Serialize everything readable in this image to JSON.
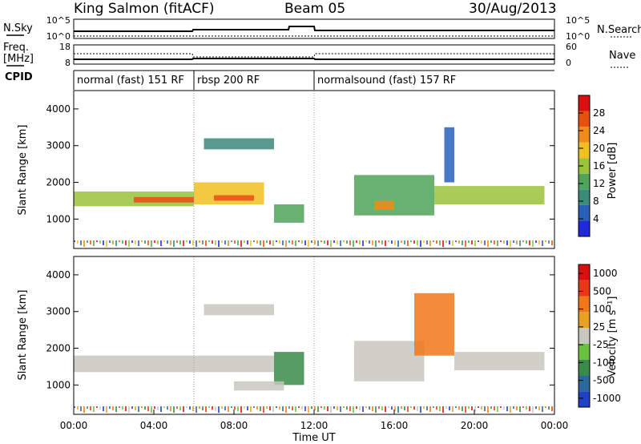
{
  "header": {
    "title": "King Salmon (fitACF)",
    "beam": "Beam 05",
    "date": "30/Aug/2013"
  },
  "summary_labels": {
    "nsky": "N.Sky",
    "nsky_ticks": [
      "10^5",
      "10^0"
    ],
    "nsearch": "N.Search",
    "nsearch_ticks": [
      "10^5",
      "10^0"
    ],
    "freq": "Freq.",
    "freq_unit": "[MHz]",
    "freq_ticks": [
      "18",
      "8"
    ],
    "nave": "Nave",
    "nave_ticks": [
      "60",
      "0"
    ],
    "cpid": "CPID"
  },
  "cpid_segments": [
    {
      "label": "normal (fast) 151 RF",
      "start": 0,
      "end": 6
    },
    {
      "label": "rbsp 200 RF",
      "start": 6,
      "end": 12
    },
    {
      "label": "normalsound (fast) 157 RF",
      "start": 12,
      "end": 24
    }
  ],
  "axes": {
    "ylabel": "Slant Range [km]",
    "xlabel": "Time UT",
    "yticks": [
      "1000",
      "2000",
      "3000",
      "4000"
    ],
    "xticks": [
      "00:00",
      "04:00",
      "08:00",
      "12:00",
      "16:00",
      "20:00",
      "00:00"
    ]
  },
  "colorbars": {
    "power": {
      "label": "Power [dB]",
      "ticks": [
        "4",
        "8",
        "12",
        "16",
        "20",
        "24",
        "28"
      ],
      "colors": [
        "#1f2bd8",
        "#2a5fb8",
        "#3b8a7a",
        "#4fa35a",
        "#9ac23a",
        "#f0c020",
        "#f08a18",
        "#e85010",
        "#d81010"
      ]
    },
    "velocity": {
      "label": "Velocity [m s⁻¹]",
      "ticks": [
        "1000",
        "500",
        "100",
        "25",
        "-25",
        "-100",
        "-500",
        "-1000"
      ],
      "colors": [
        "#2040c8",
        "#2a6a9a",
        "#3a8a4a",
        "#6cc040",
        "#c8c8c0",
        "#e8a020",
        "#f07818",
        "#e83818",
        "#d81010"
      ]
    }
  },
  "chart_data": [
    {
      "type": "heatmap",
      "title": "Power",
      "xlabel": "Time UT",
      "ylabel": "Slant Range [km]",
      "xlim": [
        0,
        24
      ],
      "ylim": [
        200,
        4500
      ],
      "colorbar_range": [
        0,
        30
      ],
      "regions": [
        {
          "t": [
            0.0,
            6.0
          ],
          "range": [
            1350,
            1750
          ],
          "value": 14
        },
        {
          "t": [
            3.0,
            6.0
          ],
          "range": [
            1450,
            1600
          ],
          "value": 24
        },
        {
          "t": [
            6.0,
            9.5
          ],
          "range": [
            1400,
            2000
          ],
          "value": 18
        },
        {
          "t": [
            7.0,
            9.0
          ],
          "range": [
            1500,
            1650
          ],
          "value": 26
        },
        {
          "t": [
            6.5,
            10.0
          ],
          "range": [
            2900,
            3200
          ],
          "value": 8
        },
        {
          "t": [
            10.0,
            11.5
          ],
          "range": [
            900,
            1400
          ],
          "value": 12
        },
        {
          "t": [
            14.0,
            18.0
          ],
          "range": [
            1100,
            2200
          ],
          "value": 10
        },
        {
          "t": [
            15.0,
            16.0
          ],
          "range": [
            1250,
            1500
          ],
          "value": 20
        },
        {
          "t": [
            18.0,
            23.5
          ],
          "range": [
            1400,
            1900
          ],
          "value": 14
        },
        {
          "t": [
            18.5,
            19.0
          ],
          "range": [
            2000,
            3500
          ],
          "value": 6
        }
      ]
    },
    {
      "type": "heatmap",
      "title": "Velocity",
      "xlabel": "Time UT",
      "ylabel": "Slant Range [km]",
      "xlim": [
        0,
        24
      ],
      "ylim": [
        200,
        4500
      ],
      "colorbar_range": [
        -1000,
        1000
      ],
      "regions": [
        {
          "t": [
            0.0,
            10.0
          ],
          "range": [
            1350,
            1800
          ],
          "value": 0
        },
        {
          "t": [
            6.5,
            10.0
          ],
          "range": [
            2900,
            3200
          ],
          "value": 0
        },
        {
          "t": [
            10.0,
            11.5
          ],
          "range": [
            1000,
            1900
          ],
          "value": -500
        },
        {
          "t": [
            8.0,
            10.5
          ],
          "range": [
            850,
            1100
          ],
          "value": 100
        },
        {
          "t": [
            14.0,
            17.5
          ],
          "range": [
            1100,
            2200
          ],
          "value": 100
        },
        {
          "t": [
            17.0,
            19.0
          ],
          "range": [
            1800,
            3500
          ],
          "value": 500
        },
        {
          "t": [
            19.0,
            23.5
          ],
          "range": [
            1400,
            1900
          ],
          "value": 0
        }
      ]
    }
  ]
}
